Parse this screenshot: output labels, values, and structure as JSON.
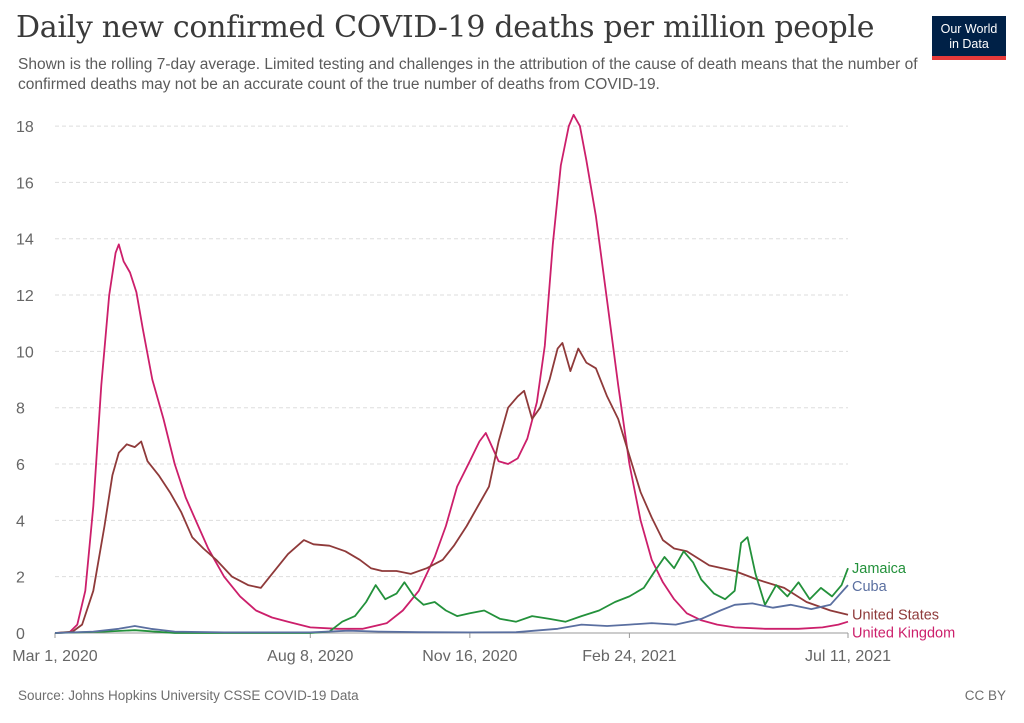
{
  "header": {
    "title": "Daily new confirmed COVID-19 deaths per million people",
    "subtitle": "Shown is the rolling 7-day average. Limited testing and challenges in the attribution of the cause of death means that the number of confirmed deaths may not be an accurate count of the true number of deaths from COVID-19.",
    "logo_line1": "Our World",
    "logo_line2": "in Data"
  },
  "footer": {
    "source": "Source: Johns Hopkins University CSSE COVID-19 Data",
    "license": "CC BY"
  },
  "colors": {
    "United Kingdom": "#cc1f6b",
    "United States": "#8f3a3a",
    "Jamaica": "#23913b",
    "Cuba": "#5a6fa0",
    "grid": "#dddddd",
    "axis_text": "#666666",
    "logo_bg": "#002147",
    "logo_accent": "#e63a3a"
  },
  "chart_data": {
    "type": "line",
    "title": "Daily new confirmed COVID-19 deaths per million people",
    "xlabel": "",
    "ylabel": "",
    "x_ticks": [
      "Mar 1, 2020",
      "Aug 8, 2020",
      "Nov 16, 2020",
      "Feb 24, 2021",
      "Jul 11, 2021"
    ],
    "y_ticks": [
      0,
      2,
      4,
      6,
      8,
      10,
      12,
      14,
      16,
      18
    ],
    "xlim": [
      "2020-03-01",
      "2021-07-11"
    ],
    "ylim": [
      0,
      18.5
    ],
    "grid": "horizontal dashed",
    "legend": "inline labels at right end of lines",
    "series": [
      {
        "name": "United Kingdom",
        "points": [
          [
            "2020-03-01",
            0
          ],
          [
            "2020-03-10",
            0.02
          ],
          [
            "2020-03-15",
            0.3
          ],
          [
            "2020-03-20",
            1.5
          ],
          [
            "2020-03-25",
            4.5
          ],
          [
            "2020-03-30",
            8.8
          ],
          [
            "2020-04-04",
            12.0
          ],
          [
            "2020-04-08",
            13.5
          ],
          [
            "2020-04-10",
            13.8
          ],
          [
            "2020-04-13",
            13.2
          ],
          [
            "2020-04-17",
            12.8
          ],
          [
            "2020-04-21",
            12.1
          ],
          [
            "2020-04-25",
            10.8
          ],
          [
            "2020-05-01",
            9.0
          ],
          [
            "2020-05-08",
            7.6
          ],
          [
            "2020-05-15",
            6.0
          ],
          [
            "2020-05-22",
            4.8
          ],
          [
            "2020-05-29",
            3.9
          ],
          [
            "2020-06-05",
            3.0
          ],
          [
            "2020-06-15",
            2.0
          ],
          [
            "2020-06-25",
            1.3
          ],
          [
            "2020-07-05",
            0.8
          ],
          [
            "2020-07-15",
            0.55
          ],
          [
            "2020-07-25",
            0.4
          ],
          [
            "2020-08-08",
            0.2
          ],
          [
            "2020-08-25",
            0.15
          ],
          [
            "2020-09-10",
            0.15
          ],
          [
            "2020-09-25",
            0.35
          ],
          [
            "2020-10-05",
            0.8
          ],
          [
            "2020-10-15",
            1.5
          ],
          [
            "2020-10-25",
            2.7
          ],
          [
            "2020-11-01",
            3.8
          ],
          [
            "2020-11-08",
            5.2
          ],
          [
            "2020-11-16",
            6.1
          ],
          [
            "2020-11-22",
            6.8
          ],
          [
            "2020-11-26",
            7.1
          ],
          [
            "2020-11-30",
            6.6
          ],
          [
            "2020-12-04",
            6.1
          ],
          [
            "2020-12-10",
            6.0
          ],
          [
            "2020-12-16",
            6.2
          ],
          [
            "2020-12-22",
            6.9
          ],
          [
            "2020-12-28",
            8.2
          ],
          [
            "2021-01-02",
            10.2
          ],
          [
            "2021-01-07",
            13.8
          ],
          [
            "2021-01-12",
            16.6
          ],
          [
            "2021-01-17",
            18.0
          ],
          [
            "2021-01-20",
            18.4
          ],
          [
            "2021-01-24",
            18.0
          ],
          [
            "2021-01-28",
            16.8
          ],
          [
            "2021-02-03",
            14.8
          ],
          [
            "2021-02-10",
            11.8
          ],
          [
            "2021-02-17",
            8.8
          ],
          [
            "2021-02-24",
            6.0
          ],
          [
            "2021-03-03",
            4.0
          ],
          [
            "2021-03-10",
            2.6
          ],
          [
            "2021-03-17",
            1.8
          ],
          [
            "2021-03-24",
            1.2
          ],
          [
            "2021-04-01",
            0.7
          ],
          [
            "2021-04-10",
            0.45
          ],
          [
            "2021-04-20",
            0.3
          ],
          [
            "2021-05-01",
            0.2
          ],
          [
            "2021-05-20",
            0.15
          ],
          [
            "2021-06-10",
            0.15
          ],
          [
            "2021-06-25",
            0.2
          ],
          [
            "2021-07-05",
            0.3
          ],
          [
            "2021-07-11",
            0.4
          ]
        ]
      },
      {
        "name": "United States",
        "points": [
          [
            "2020-03-01",
            0
          ],
          [
            "2020-03-12",
            0.05
          ],
          [
            "2020-03-18",
            0.3
          ],
          [
            "2020-03-25",
            1.5
          ],
          [
            "2020-04-01",
            3.8
          ],
          [
            "2020-04-06",
            5.6
          ],
          [
            "2020-04-10",
            6.4
          ],
          [
            "2020-04-15",
            6.7
          ],
          [
            "2020-04-20",
            6.6
          ],
          [
            "2020-04-24",
            6.8
          ],
          [
            "2020-04-28",
            6.1
          ],
          [
            "2020-05-05",
            5.6
          ],
          [
            "2020-05-12",
            5.0
          ],
          [
            "2020-05-19",
            4.3
          ],
          [
            "2020-05-26",
            3.4
          ],
          [
            "2020-06-02",
            3.0
          ],
          [
            "2020-06-10",
            2.6
          ],
          [
            "2020-06-20",
            2.0
          ],
          [
            "2020-06-30",
            1.7
          ],
          [
            "2020-07-08",
            1.6
          ],
          [
            "2020-07-15",
            2.1
          ],
          [
            "2020-07-25",
            2.8
          ],
          [
            "2020-08-04",
            3.3
          ],
          [
            "2020-08-10",
            3.15
          ],
          [
            "2020-08-20",
            3.1
          ],
          [
            "2020-08-30",
            2.9
          ],
          [
            "2020-09-08",
            2.6
          ],
          [
            "2020-09-15",
            2.3
          ],
          [
            "2020-09-22",
            2.2
          ],
          [
            "2020-10-01",
            2.2
          ],
          [
            "2020-10-10",
            2.1
          ],
          [
            "2020-10-20",
            2.3
          ],
          [
            "2020-10-30",
            2.6
          ],
          [
            "2020-11-06",
            3.1
          ],
          [
            "2020-11-14",
            3.8
          ],
          [
            "2020-11-22",
            4.6
          ],
          [
            "2020-11-28",
            5.2
          ],
          [
            "2020-12-04",
            6.8
          ],
          [
            "2020-12-10",
            8.0
          ],
          [
            "2020-12-16",
            8.4
          ],
          [
            "2020-12-20",
            8.6
          ],
          [
            "2020-12-25",
            7.6
          ],
          [
            "2020-12-30",
            8.0
          ],
          [
            "2021-01-05",
            9.0
          ],
          [
            "2021-01-10",
            10.1
          ],
          [
            "2021-01-13",
            10.3
          ],
          [
            "2021-01-18",
            9.3
          ],
          [
            "2021-01-23",
            10.1
          ],
          [
            "2021-01-28",
            9.6
          ],
          [
            "2021-02-03",
            9.4
          ],
          [
            "2021-02-10",
            8.4
          ],
          [
            "2021-02-17",
            7.6
          ],
          [
            "2021-02-24",
            6.3
          ],
          [
            "2021-03-03",
            5.0
          ],
          [
            "2021-03-10",
            4.1
          ],
          [
            "2021-03-17",
            3.3
          ],
          [
            "2021-03-24",
            3.0
          ],
          [
            "2021-04-01",
            2.9
          ],
          [
            "2021-04-15",
            2.4
          ],
          [
            "2021-05-01",
            2.2
          ],
          [
            "2021-05-15",
            1.9
          ],
          [
            "2021-06-01",
            1.6
          ],
          [
            "2021-06-15",
            1.1
          ],
          [
            "2021-06-30",
            0.8
          ],
          [
            "2021-07-11",
            0.65
          ]
        ]
      },
      {
        "name": "Jamaica",
        "points": [
          [
            "2020-03-01",
            0
          ],
          [
            "2020-04-01",
            0.05
          ],
          [
            "2020-04-20",
            0.1
          ],
          [
            "2020-05-15",
            0.0
          ],
          [
            "2020-06-15",
            0.0
          ],
          [
            "2020-08-08",
            0.0
          ],
          [
            "2020-08-20",
            0.05
          ],
          [
            "2020-08-28",
            0.4
          ],
          [
            "2020-09-05",
            0.6
          ],
          [
            "2020-09-12",
            1.1
          ],
          [
            "2020-09-18",
            1.7
          ],
          [
            "2020-09-24",
            1.2
          ],
          [
            "2020-10-01",
            1.4
          ],
          [
            "2020-10-06",
            1.8
          ],
          [
            "2020-10-12",
            1.3
          ],
          [
            "2020-10-18",
            1.0
          ],
          [
            "2020-10-25",
            1.1
          ],
          [
            "2020-11-01",
            0.8
          ],
          [
            "2020-11-08",
            0.6
          ],
          [
            "2020-11-16",
            0.7
          ],
          [
            "2020-11-25",
            0.8
          ],
          [
            "2020-12-05",
            0.5
          ],
          [
            "2020-12-15",
            0.4
          ],
          [
            "2020-12-25",
            0.6
          ],
          [
            "2021-01-05",
            0.5
          ],
          [
            "2021-01-15",
            0.4
          ],
          [
            "2021-01-25",
            0.6
          ],
          [
            "2021-02-05",
            0.8
          ],
          [
            "2021-02-15",
            1.1
          ],
          [
            "2021-02-24",
            1.3
          ],
          [
            "2021-03-05",
            1.6
          ],
          [
            "2021-03-12",
            2.2
          ],
          [
            "2021-03-18",
            2.7
          ],
          [
            "2021-03-24",
            2.3
          ],
          [
            "2021-03-30",
            2.9
          ],
          [
            "2021-04-05",
            2.5
          ],
          [
            "2021-04-10",
            1.9
          ],
          [
            "2021-04-18",
            1.4
          ],
          [
            "2021-04-25",
            1.2
          ],
          [
            "2021-05-01",
            1.5
          ],
          [
            "2021-05-05",
            3.2
          ],
          [
            "2021-05-09",
            3.4
          ],
          [
            "2021-05-14",
            2.1
          ],
          [
            "2021-05-20",
            1.0
          ],
          [
            "2021-05-27",
            1.7
          ],
          [
            "2021-06-03",
            1.3
          ],
          [
            "2021-06-10",
            1.8
          ],
          [
            "2021-06-17",
            1.2
          ],
          [
            "2021-06-24",
            1.6
          ],
          [
            "2021-07-01",
            1.3
          ],
          [
            "2021-07-07",
            1.7
          ],
          [
            "2021-07-11",
            2.3
          ]
        ]
      },
      {
        "name": "Cuba",
        "points": [
          [
            "2020-03-01",
            0
          ],
          [
            "2020-03-25",
            0.05
          ],
          [
            "2020-04-10",
            0.15
          ],
          [
            "2020-04-20",
            0.25
          ],
          [
            "2020-04-30",
            0.15
          ],
          [
            "2020-05-15",
            0.05
          ],
          [
            "2020-06-15",
            0.02
          ],
          [
            "2020-08-08",
            0.02
          ],
          [
            "2020-09-01",
            0.08
          ],
          [
            "2020-09-20",
            0.05
          ],
          [
            "2020-10-15",
            0.03
          ],
          [
            "2020-11-16",
            0.02
          ],
          [
            "2020-12-15",
            0.03
          ],
          [
            "2021-01-10",
            0.15
          ],
          [
            "2021-01-25",
            0.3
          ],
          [
            "2021-02-10",
            0.25
          ],
          [
            "2021-02-24",
            0.3
          ],
          [
            "2021-03-10",
            0.35
          ],
          [
            "2021-03-25",
            0.3
          ],
          [
            "2021-04-10",
            0.5
          ],
          [
            "2021-04-22",
            0.8
          ],
          [
            "2021-05-01",
            1.0
          ],
          [
            "2021-05-12",
            1.05
          ],
          [
            "2021-05-25",
            0.9
          ],
          [
            "2021-06-05",
            1.0
          ],
          [
            "2021-06-18",
            0.85
          ],
          [
            "2021-06-30",
            1.0
          ],
          [
            "2021-07-11",
            1.7
          ]
        ]
      }
    ]
  }
}
